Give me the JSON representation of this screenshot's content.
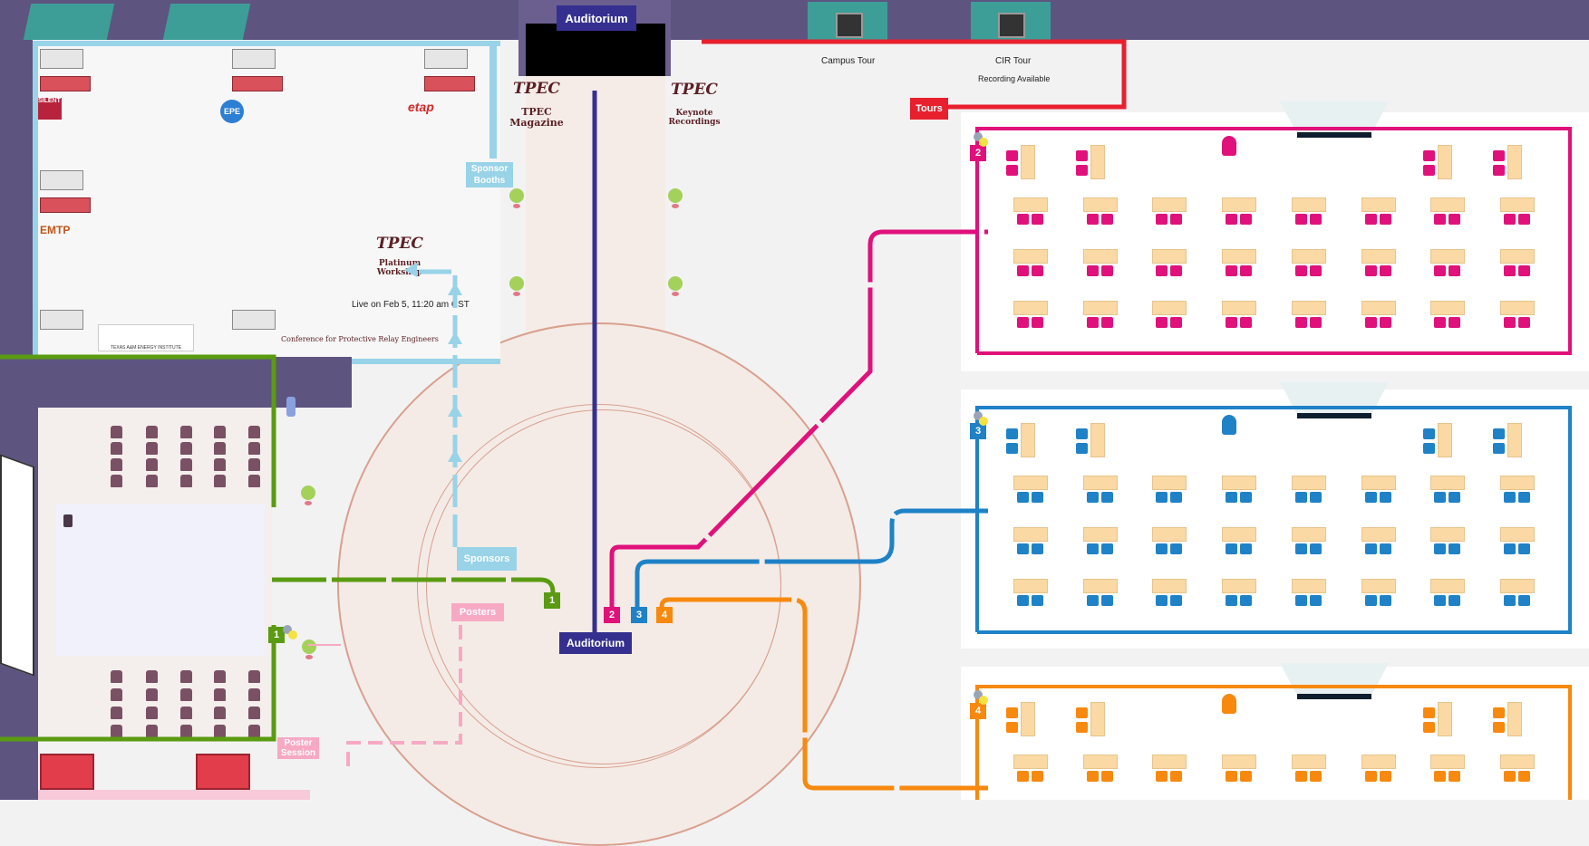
{
  "header": {
    "auditorium_top": "Auditorium",
    "campus_tour": "Campus Tour",
    "cir_tour": "CIR Tour",
    "recording_available": "Recording Available",
    "tours": "Tours"
  },
  "sponsor_area": {
    "booths_label_1": "Sponsor",
    "booths_label_2": "Booths",
    "logos": [
      "SILENT",
      "EPE",
      "etap",
      "EMTP",
      "TEXAS A&M ENERGY INSTITUTE",
      "Conference for Protective Relay Engineers"
    ]
  },
  "tpec_magazine": {
    "brand": "TPEC",
    "line1": "TPEC",
    "line2": "Magazine"
  },
  "keynote": {
    "brand": "TPEC",
    "line1": "Keynote",
    "line2": "Recordings"
  },
  "platinum": {
    "brand": "TPEC",
    "line1": "Platinum",
    "line2": "Workshop",
    "line3": "Live on Feb 5, 11:20 am CST"
  },
  "signs": {
    "sponsors": "Sponsors",
    "posters": "Posters",
    "auditorium_bottom": "Auditorium",
    "poster_session_1": "Poster",
    "poster_session_2": "Session"
  },
  "markers": {
    "m1": "1",
    "m2": "2",
    "m3": "3",
    "m4": "4",
    "room2": "2",
    "room3": "3",
    "room4": "4",
    "left1": "1"
  },
  "colors": {
    "pink": "#e0117a",
    "blue": "#1f82c7",
    "orange": "#f7890f",
    "green": "#5a9b12",
    "navy": "#35308f",
    "red": "#e8202d",
    "light_blue": "#98d3e8",
    "light_pink": "#f7a9c4"
  }
}
